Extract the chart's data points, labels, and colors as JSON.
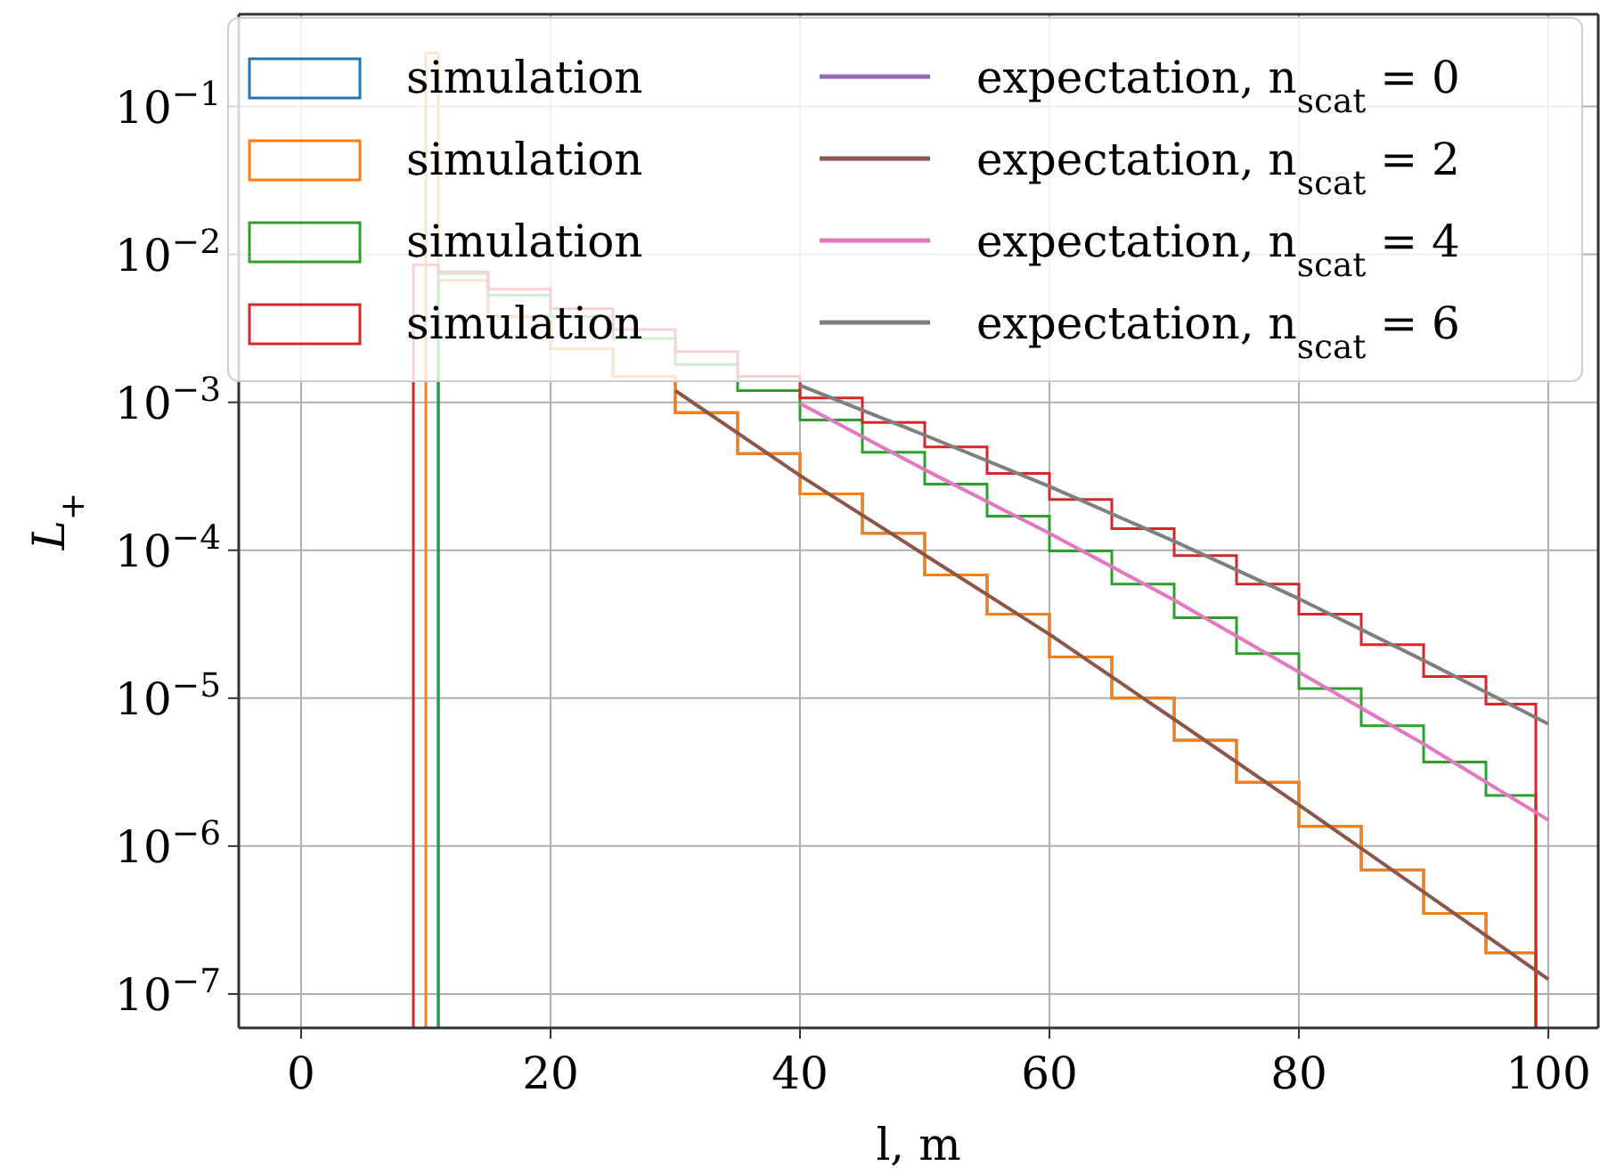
{
  "chart_data": {
    "type": "line",
    "xlabel": "l, m",
    "ylabel": "L$_{+}$",
    "log": "y",
    "grid": true,
    "legend": "top",
    "xlim": [
      -5,
      104
    ],
    "xticks": [
      0,
      20,
      40,
      60,
      80,
      100
    ],
    "ylim": [
      5.9e-08,
      0.42
    ],
    "yticks": [
      {
        "value": 1e-07,
        "label": "10$^{−7}$"
      },
      {
        "value": 1e-06,
        "label": "10$^{−6}$"
      },
      {
        "value": 1e-05,
        "label": "10$^{−5}$"
      },
      {
        "value": 0.0001,
        "label": "10$^{−4}$"
      },
      {
        "value": 0.001,
        "label": "10$^{−3}$"
      },
      {
        "value": 0.01,
        "label": "10$^{−2}$"
      },
      {
        "value": 0.1,
        "label": "10$^{−1}$"
      }
    ],
    "series": [
      {
        "type": "histogram",
        "name": "simulation",
        "color": "#1f77b4",
        "bins": [
          11,
          15,
          20,
          25,
          30,
          35,
          40,
          45,
          50,
          55,
          60,
          65,
          70,
          75,
          80,
          85,
          90,
          95,
          99
        ],
        "values": [
          0.0067,
          0.0038,
          0.0023,
          0.0015,
          0.00085,
          0.00045,
          0.00024,
          0.00013,
          6.8e-05,
          3.7e-05,
          1.9e-05,
          1e-05,
          5.2e-06,
          2.7e-06,
          1.36e-06,
          6.9e-07,
          3.5e-07,
          1.9e-07
        ]
      },
      {
        "type": "histogram",
        "name": "simulation",
        "color": "#ff7f0e",
        "bins": [
          10,
          11,
          15,
          20,
          25,
          30,
          35,
          40,
          45,
          50,
          55,
          60,
          65,
          70,
          75,
          80,
          85,
          90,
          95,
          99
        ],
        "values": [
          0.23,
          0.0067,
          0.0038,
          0.0023,
          0.0015,
          0.00085,
          0.00045,
          0.00024,
          0.00013,
          6.8e-05,
          3.7e-05,
          1.9e-05,
          1e-05,
          5.2e-06,
          2.7e-06,
          1.36e-06,
          6.9e-07,
          3.5e-07,
          1.9e-07
        ]
      },
      {
        "type": "histogram",
        "name": "simulation",
        "color": "#2ca02c",
        "bins": [
          11,
          15,
          20,
          25,
          30,
          35,
          40,
          45,
          50,
          55,
          60,
          65,
          70,
          75,
          80,
          85,
          90,
          95,
          99
        ],
        "values": [
          0.0074,
          0.0053,
          0.0038,
          0.0027,
          0.0018,
          0.0012,
          0.00076,
          0.00046,
          0.00028,
          0.00017,
          9.9e-05,
          5.9e-05,
          3.5e-05,
          2e-05,
          1.16e-05,
          6.5e-06,
          3.7e-06,
          2.2e-06
        ]
      },
      {
        "type": "histogram",
        "name": "simulation",
        "color": "#d62728",
        "bins": [
          9,
          11,
          15,
          20,
          25,
          30,
          35,
          40,
          45,
          50,
          55,
          60,
          65,
          70,
          75,
          80,
          85,
          90,
          95,
          99
        ],
        "values": [
          0.0085,
          0.0076,
          0.0058,
          0.0043,
          0.0031,
          0.0022,
          0.0015,
          0.00107,
          0.00073,
          0.0005,
          0.00033,
          0.00022,
          0.00014,
          9.2e-05,
          5.9e-05,
          3.7e-05,
          2.3e-05,
          1.4e-05,
          9.1e-06
        ]
      },
      {
        "name": "expectation, n$_{scat}$ = 0",
        "color": "#9467bd"
      },
      {
        "name": "expectation, n$_{scat}$ = 2",
        "color": "#8c564b",
        "x": [
          30,
          40,
          50,
          60,
          70,
          80,
          90,
          100
        ],
        "values": [
          0.0012,
          0.00032,
          9.3e-05,
          2.7e-05,
          7.2e-06,
          1.9e-06,
          4.9e-07,
          1.26e-07
        ]
      },
      {
        "name": "expectation, n$_{scat}$ = 4",
        "color": "#e377c2",
        "x": [
          40,
          50,
          60,
          70,
          80,
          90,
          100
        ],
        "values": [
          0.00098,
          0.00035,
          0.00013,
          4.6e-05,
          1.5e-05,
          4.9e-06,
          1.5e-06
        ]
      },
      {
        "name": "expectation, n$_{scat}$ = 6",
        "color": "#7f7f7f",
        "x": [
          40,
          50,
          60,
          70,
          80,
          90,
          100
        ],
        "values": [
          0.0013,
          0.0006,
          0.00027,
          0.000115,
          4.7e-05,
          1.8e-05,
          6.7e-06
        ]
      }
    ]
  }
}
